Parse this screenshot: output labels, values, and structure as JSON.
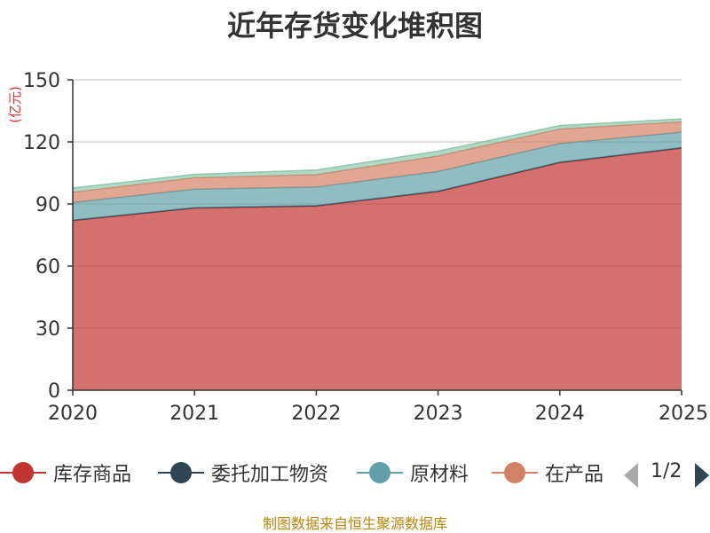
{
  "chart_data": {
    "type": "area",
    "stacked": true,
    "title": "近年存货变化堆积图",
    "ylabel": "(亿元)",
    "xlabel": "",
    "categories": [
      "2020",
      "2021",
      "2022",
      "2023",
      "2024",
      "2025"
    ],
    "ylim": [
      0,
      150
    ],
    "yticks": [
      0,
      30,
      60,
      90,
      120,
      150
    ],
    "grid": true,
    "legend_position": "bottom",
    "series": [
      {
        "name": "库存商品",
        "color": "#c23531",
        "values": [
          82,
          88,
          89,
          96,
          110,
          117
        ]
      },
      {
        "name": "委托加工物资",
        "color": "#2f4554",
        "values": [
          0.2,
          0.2,
          0.2,
          0.2,
          0.2,
          0.2
        ]
      },
      {
        "name": "原材料",
        "color": "#61a0a8",
        "values": [
          8.5,
          9,
          9,
          9.5,
          9,
          7.5
        ]
      },
      {
        "name": "在产品",
        "color": "#d48265",
        "values": [
          5,
          5.5,
          6,
          7.5,
          7,
          5
        ]
      },
      {
        "name": "",
        "color": "#91c7ae",
        "values": [
          2,
          1.6,
          2.2,
          2.3,
          1.7,
          1.4
        ]
      }
    ]
  },
  "legend": {
    "items": [
      {
        "label": "库存商品",
        "color": "#c23531"
      },
      {
        "label": "委托加工物资",
        "color": "#2f4554"
      },
      {
        "label": "原材料",
        "color": "#61a0a8"
      },
      {
        "label": "在产品",
        "color": "#d48265"
      }
    ],
    "page_indicator": "1/2"
  },
  "footer": {
    "source": "制图数据来自恒生聚源数据库"
  }
}
